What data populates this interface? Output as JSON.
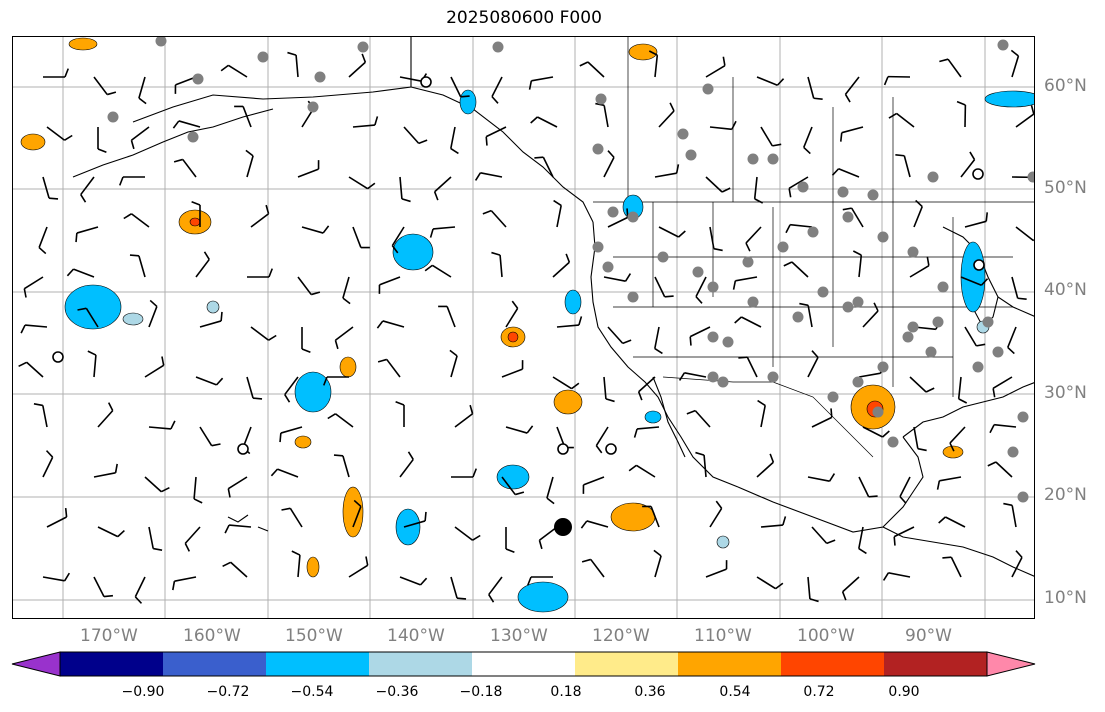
{
  "map": {
    "title": "2025080600 F000",
    "lat_labels": [
      "60°N",
      "50°N",
      "40°N",
      "30°N",
      "20°N",
      "10°N"
    ],
    "lon_labels": [
      "170°W",
      "160°W",
      "150°W",
      "140°W",
      "130°W",
      "120°W",
      "110°W",
      "100°W",
      "90°W"
    ],
    "grid": true,
    "land_color": "#ffffff",
    "coastline_color": "#000000",
    "gridline_color": "#b0b0b0",
    "station_marker_color": "#808080"
  },
  "colorbar": {
    "tick_labels": [
      "−0.90",
      "−0.72",
      "−0.54",
      "−0.36",
      "−0.18",
      "0.18",
      "0.36",
      "0.54",
      "0.72",
      "0.90"
    ],
    "bins": [
      {
        "color": "#9932cc"
      },
      {
        "color": "#00008b"
      },
      {
        "color": "#3a5fcd"
      },
      {
        "color": "#00bfff"
      },
      {
        "color": "#add8e6"
      },
      {
        "color": "#ffffff"
      },
      {
        "color": "#ffeb8a"
      },
      {
        "color": "#ffa500"
      },
      {
        "color": "#ff4500"
      },
      {
        "color": "#b22222"
      },
      {
        "color": "#ff88aa"
      }
    ]
  }
}
